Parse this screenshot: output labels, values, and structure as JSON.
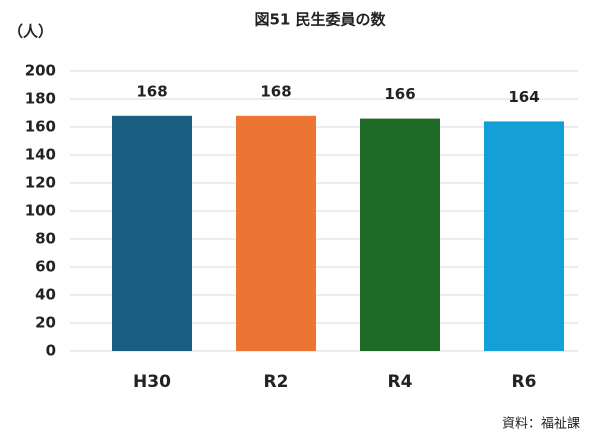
{
  "chart_data": {
    "type": "bar",
    "title": "図51 民生委員の数",
    "y_label": "（人）",
    "source": "資料：福祉課",
    "categories": [
      "H30",
      "R2",
      "R4",
      "R6"
    ],
    "values": [
      168,
      168,
      166,
      164
    ],
    "colors": [
      "#1a5e82",
      "#ec7533",
      "#1e6b27",
      "#14a0d6"
    ],
    "ylim": [
      0,
      200
    ],
    "yticks": [
      0,
      20,
      40,
      60,
      80,
      100,
      120,
      140,
      160,
      180,
      200
    ],
    "grid": true
  }
}
